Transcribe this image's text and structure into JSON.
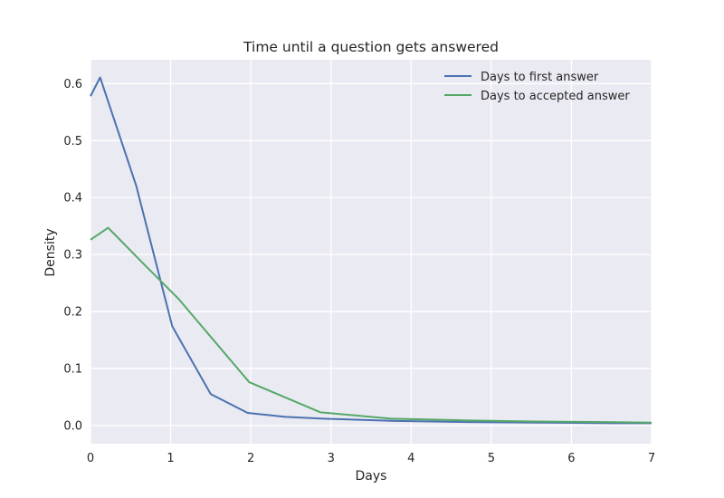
{
  "chart_data": {
    "type": "line",
    "title": "Time until a question gets answered",
    "xlabel": "Days",
    "ylabel": "Density",
    "xlim": [
      0,
      7
    ],
    "ylim": [
      -0.032,
      0.642
    ],
    "xticks": [
      0,
      1,
      2,
      3,
      4,
      5,
      6,
      7
    ],
    "yticks": [
      0.0,
      0.1,
      0.2,
      0.3,
      0.4,
      0.5,
      0.6
    ],
    "xtick_labels": [
      "0",
      "1",
      "2",
      "3",
      "4",
      "5",
      "6",
      "7"
    ],
    "ytick_labels": [
      "0.0",
      "0.1",
      "0.2",
      "0.3",
      "0.4",
      "0.5",
      "0.6"
    ],
    "grid": true,
    "legend_position": "top-right",
    "series": [
      {
        "name": "Days to first answer",
        "color": "#4c72b0",
        "x": [
          0,
          0.12,
          0.57,
          1.02,
          1.5,
          1.96,
          2.43,
          2.9,
          3.8,
          4.7,
          5.6,
          6.5,
          7.0
        ],
        "y": [
          0.578,
          0.611,
          0.421,
          0.174,
          0.055,
          0.022,
          0.015,
          0.012,
          0.008,
          0.006,
          0.005,
          0.004,
          0.004
        ]
      },
      {
        "name": "Days to accepted answer",
        "color": "#55a868",
        "x": [
          0,
          0.22,
          0.66,
          1.1,
          1.98,
          2.87,
          3.75,
          4.64,
          5.53,
          6.41,
          7.0
        ],
        "y": [
          0.326,
          0.347,
          0.284,
          0.222,
          0.076,
          0.023,
          0.012,
          0.009,
          0.007,
          0.006,
          0.005
        ]
      }
    ]
  }
}
